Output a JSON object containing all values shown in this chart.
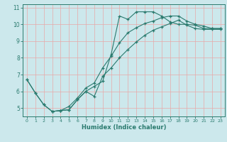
{
  "title": "",
  "xlabel": "Humidex (Indice chaleur)",
  "xlim": [
    -0.5,
    23.5
  ],
  "ylim": [
    4.5,
    11.2
  ],
  "yticks": [
    5,
    6,
    7,
    8,
    9,
    10,
    11
  ],
  "xticks": [
    0,
    1,
    2,
    3,
    4,
    5,
    6,
    7,
    8,
    9,
    10,
    11,
    12,
    13,
    14,
    15,
    16,
    17,
    18,
    19,
    20,
    21,
    22,
    23
  ],
  "bg_color": "#cce8ec",
  "line_color": "#2a7a6e",
  "grid_color": "#e8a8a8",
  "curve1_x": [
    0,
    1,
    2,
    3,
    4,
    5,
    6,
    7,
    8,
    9,
    10,
    11,
    12,
    13,
    14,
    15,
    16,
    17,
    18,
    19,
    20,
    21,
    22,
    23
  ],
  "curve1_y": [
    6.7,
    5.9,
    5.2,
    4.8,
    4.85,
    4.9,
    5.5,
    6.0,
    6.3,
    6.6,
    8.2,
    10.5,
    10.3,
    10.75,
    10.75,
    10.75,
    10.5,
    10.15,
    10.0,
    10.0,
    9.95,
    9.75,
    9.75,
    9.75
  ],
  "curve2_x": [
    0,
    1,
    2,
    3,
    4,
    5,
    6,
    7,
    8,
    9,
    10,
    11,
    12,
    13,
    14,
    15,
    16,
    17,
    18,
    19,
    20,
    21,
    22,
    23
  ],
  "curve2_y": [
    6.7,
    5.9,
    5.2,
    4.8,
    4.85,
    5.1,
    5.6,
    6.2,
    6.5,
    7.4,
    8.1,
    8.9,
    9.5,
    9.8,
    10.05,
    10.2,
    10.4,
    10.5,
    10.5,
    10.2,
    10.0,
    9.9,
    9.75,
    9.75
  ],
  "curve3_x": [
    3,
    4,
    5,
    6,
    7,
    8,
    9,
    10,
    11,
    12,
    13,
    14,
    15,
    16,
    17,
    18,
    19,
    20,
    21,
    22,
    23
  ],
  "curve3_y": [
    4.8,
    4.85,
    4.9,
    5.5,
    6.0,
    5.7,
    6.9,
    7.4,
    8.0,
    8.5,
    8.95,
    9.35,
    9.65,
    9.85,
    10.05,
    10.25,
    9.95,
    9.75,
    9.7,
    9.7,
    9.7
  ]
}
